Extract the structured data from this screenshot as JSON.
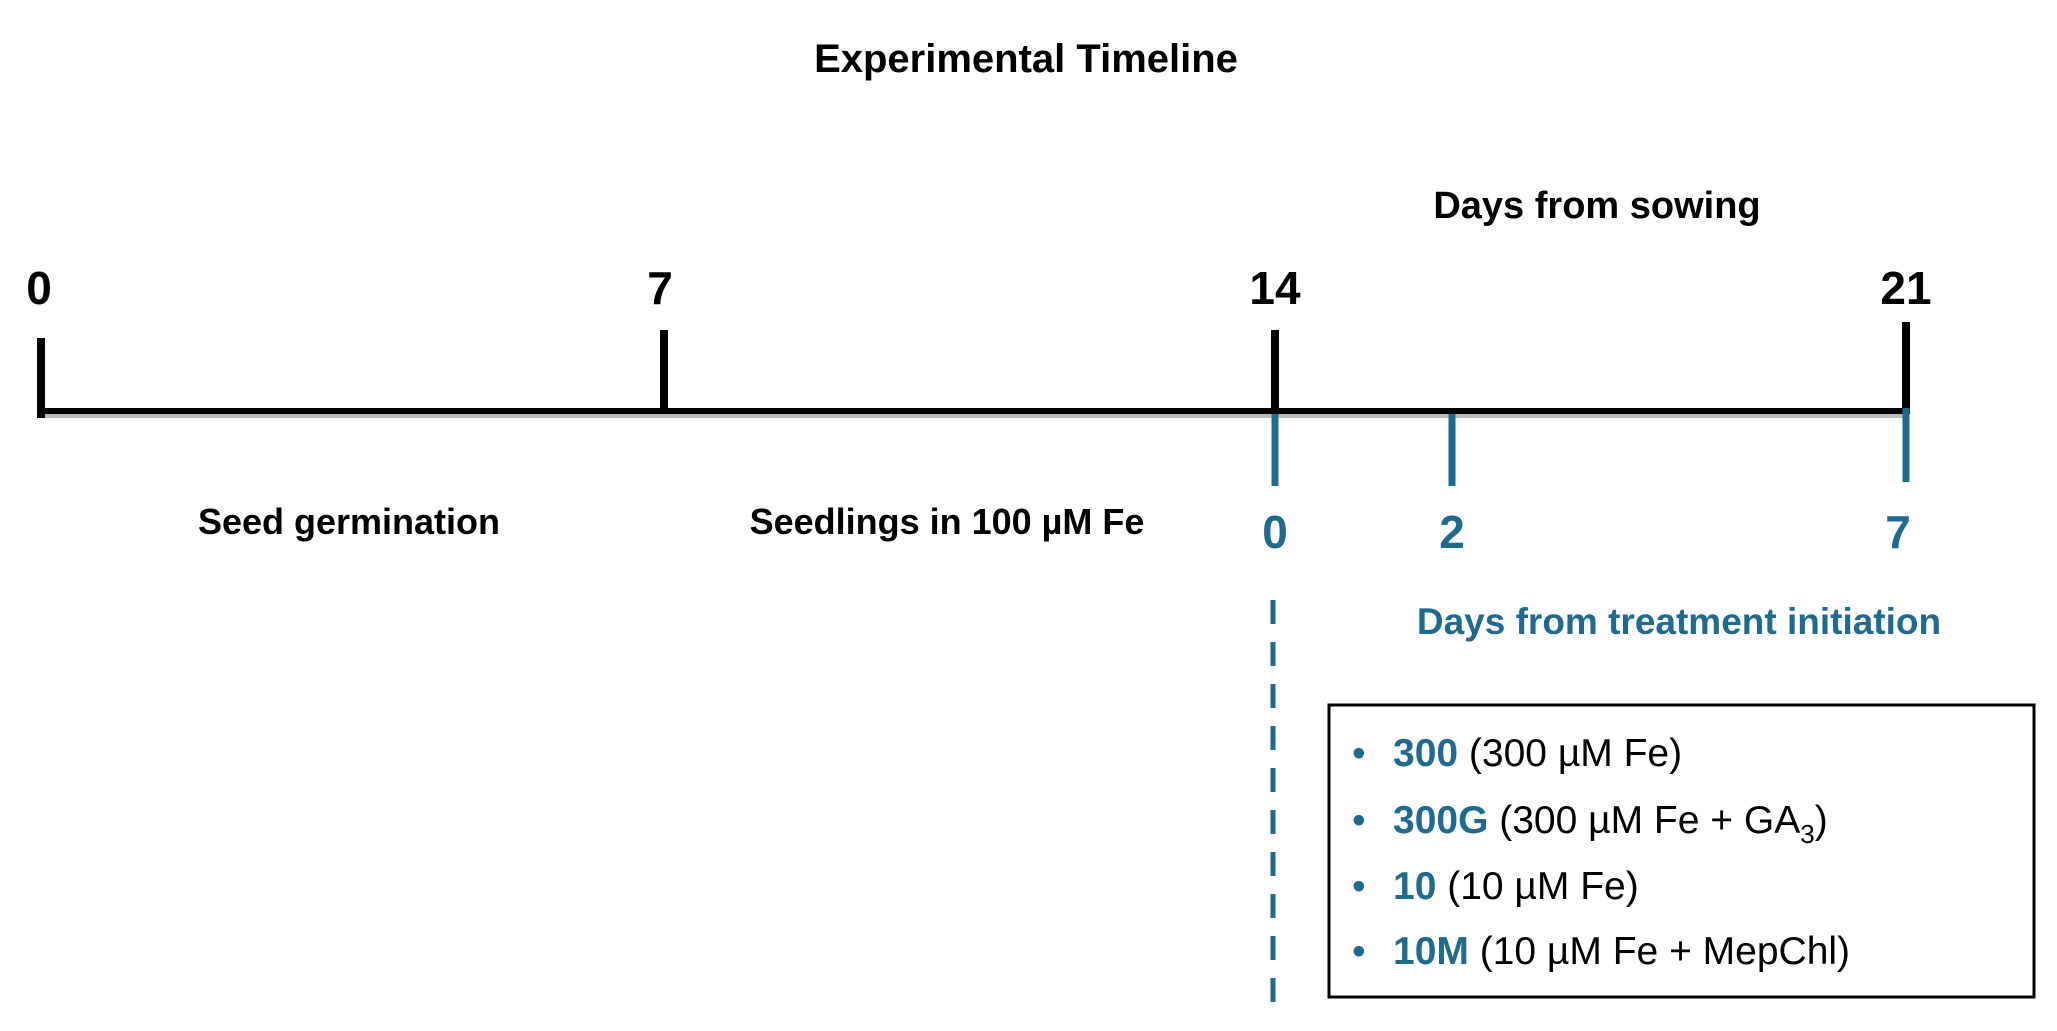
{
  "title": "Experimental Timeline",
  "sowing_axis": {
    "label": "Days from sowing",
    "ticks": [
      "0",
      "7",
      "14",
      "21"
    ]
  },
  "phases": [
    "Seed germination",
    "Seedlings in 100 µM Fe"
  ],
  "treatment_axis": {
    "label": "Days from treatment initiation",
    "ticks": [
      "0",
      "2",
      "7"
    ]
  },
  "treatments": [
    {
      "code": "300",
      "description": "(300 µM Fe)"
    },
    {
      "code": "300G",
      "description": "(300 µM Fe + GA",
      "subscript": "3",
      "description_end": ")"
    },
    {
      "code": "10",
      "description": "(10 µM Fe)"
    },
    {
      "code": "10M",
      "description": "(10 µM Fe + MepChl)"
    }
  ]
}
